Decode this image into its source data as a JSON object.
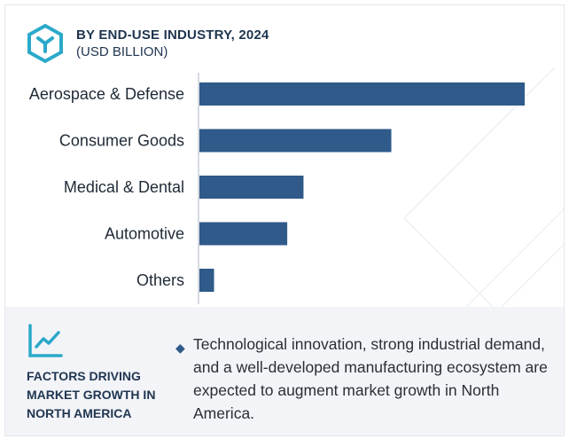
{
  "header": {
    "title": "BY END-USE INDUSTRY, 2024",
    "subtitle": "(USD BILLION)",
    "logo_icon": "hexagon-y-logo-icon",
    "accent_color": "#2aa9c9"
  },
  "chart_data": {
    "type": "bar",
    "orientation": "horizontal",
    "title": "BY END-USE INDUSTRY, 2024",
    "subtitle": "(USD BILLION)",
    "categories": [
      "Aerospace & Defense",
      "Consumer Goods",
      "Medical & Dental",
      "Automotive",
      "Others"
    ],
    "values": [
      100,
      59,
      32,
      27,
      4.5
    ],
    "xlim": [
      0,
      100
    ],
    "bar_color": "#2f5a8a",
    "grid": false,
    "legend": "none"
  },
  "footer": {
    "icon": "line-chart-icon",
    "heading": "FACTORS DRIVING MARKET GROWTH IN NORTH AMERICA",
    "bullet_icon": "diamond-bullet-icon",
    "description": "Technological innovation, strong industrial demand, and a well-developed manufacturing ecosystem are expected to augment market growth in North America."
  }
}
